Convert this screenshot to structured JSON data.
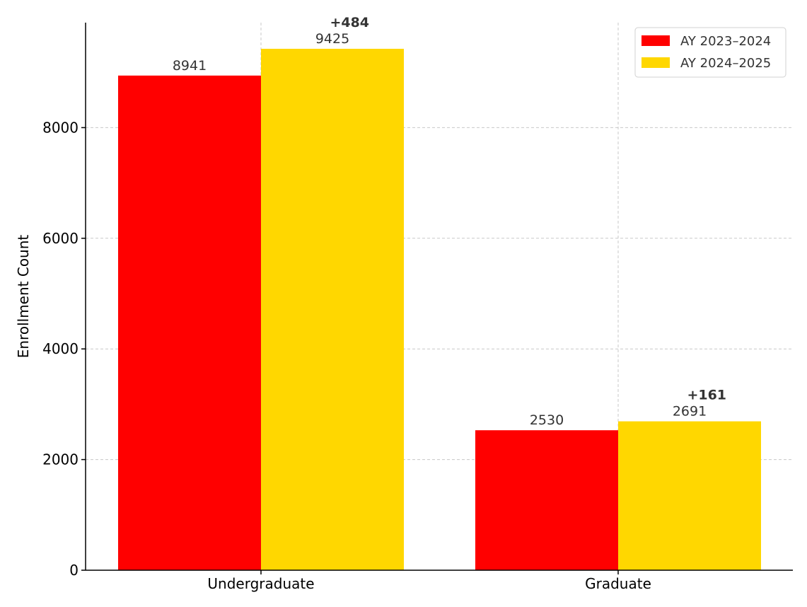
{
  "chart_data": {
    "type": "bar",
    "title": "",
    "xlabel": "",
    "ylabel": "Enrollment Count",
    "categories": [
      "Undergraduate",
      "Graduate"
    ],
    "series": [
      {
        "name": "AY 2023–2024",
        "color": "#ff0000",
        "values": [
          8941,
          2530
        ]
      },
      {
        "name": "AY 2024–2025",
        "color": "#ffd700",
        "values": [
          9425,
          2691
        ]
      }
    ],
    "deltas": [
      "+484",
      "+161"
    ],
    "ylim": [
      0,
      9900
    ],
    "yticks": [
      0,
      2000,
      4000,
      6000,
      8000
    ],
    "grid": true,
    "legend_position": "top-right"
  }
}
